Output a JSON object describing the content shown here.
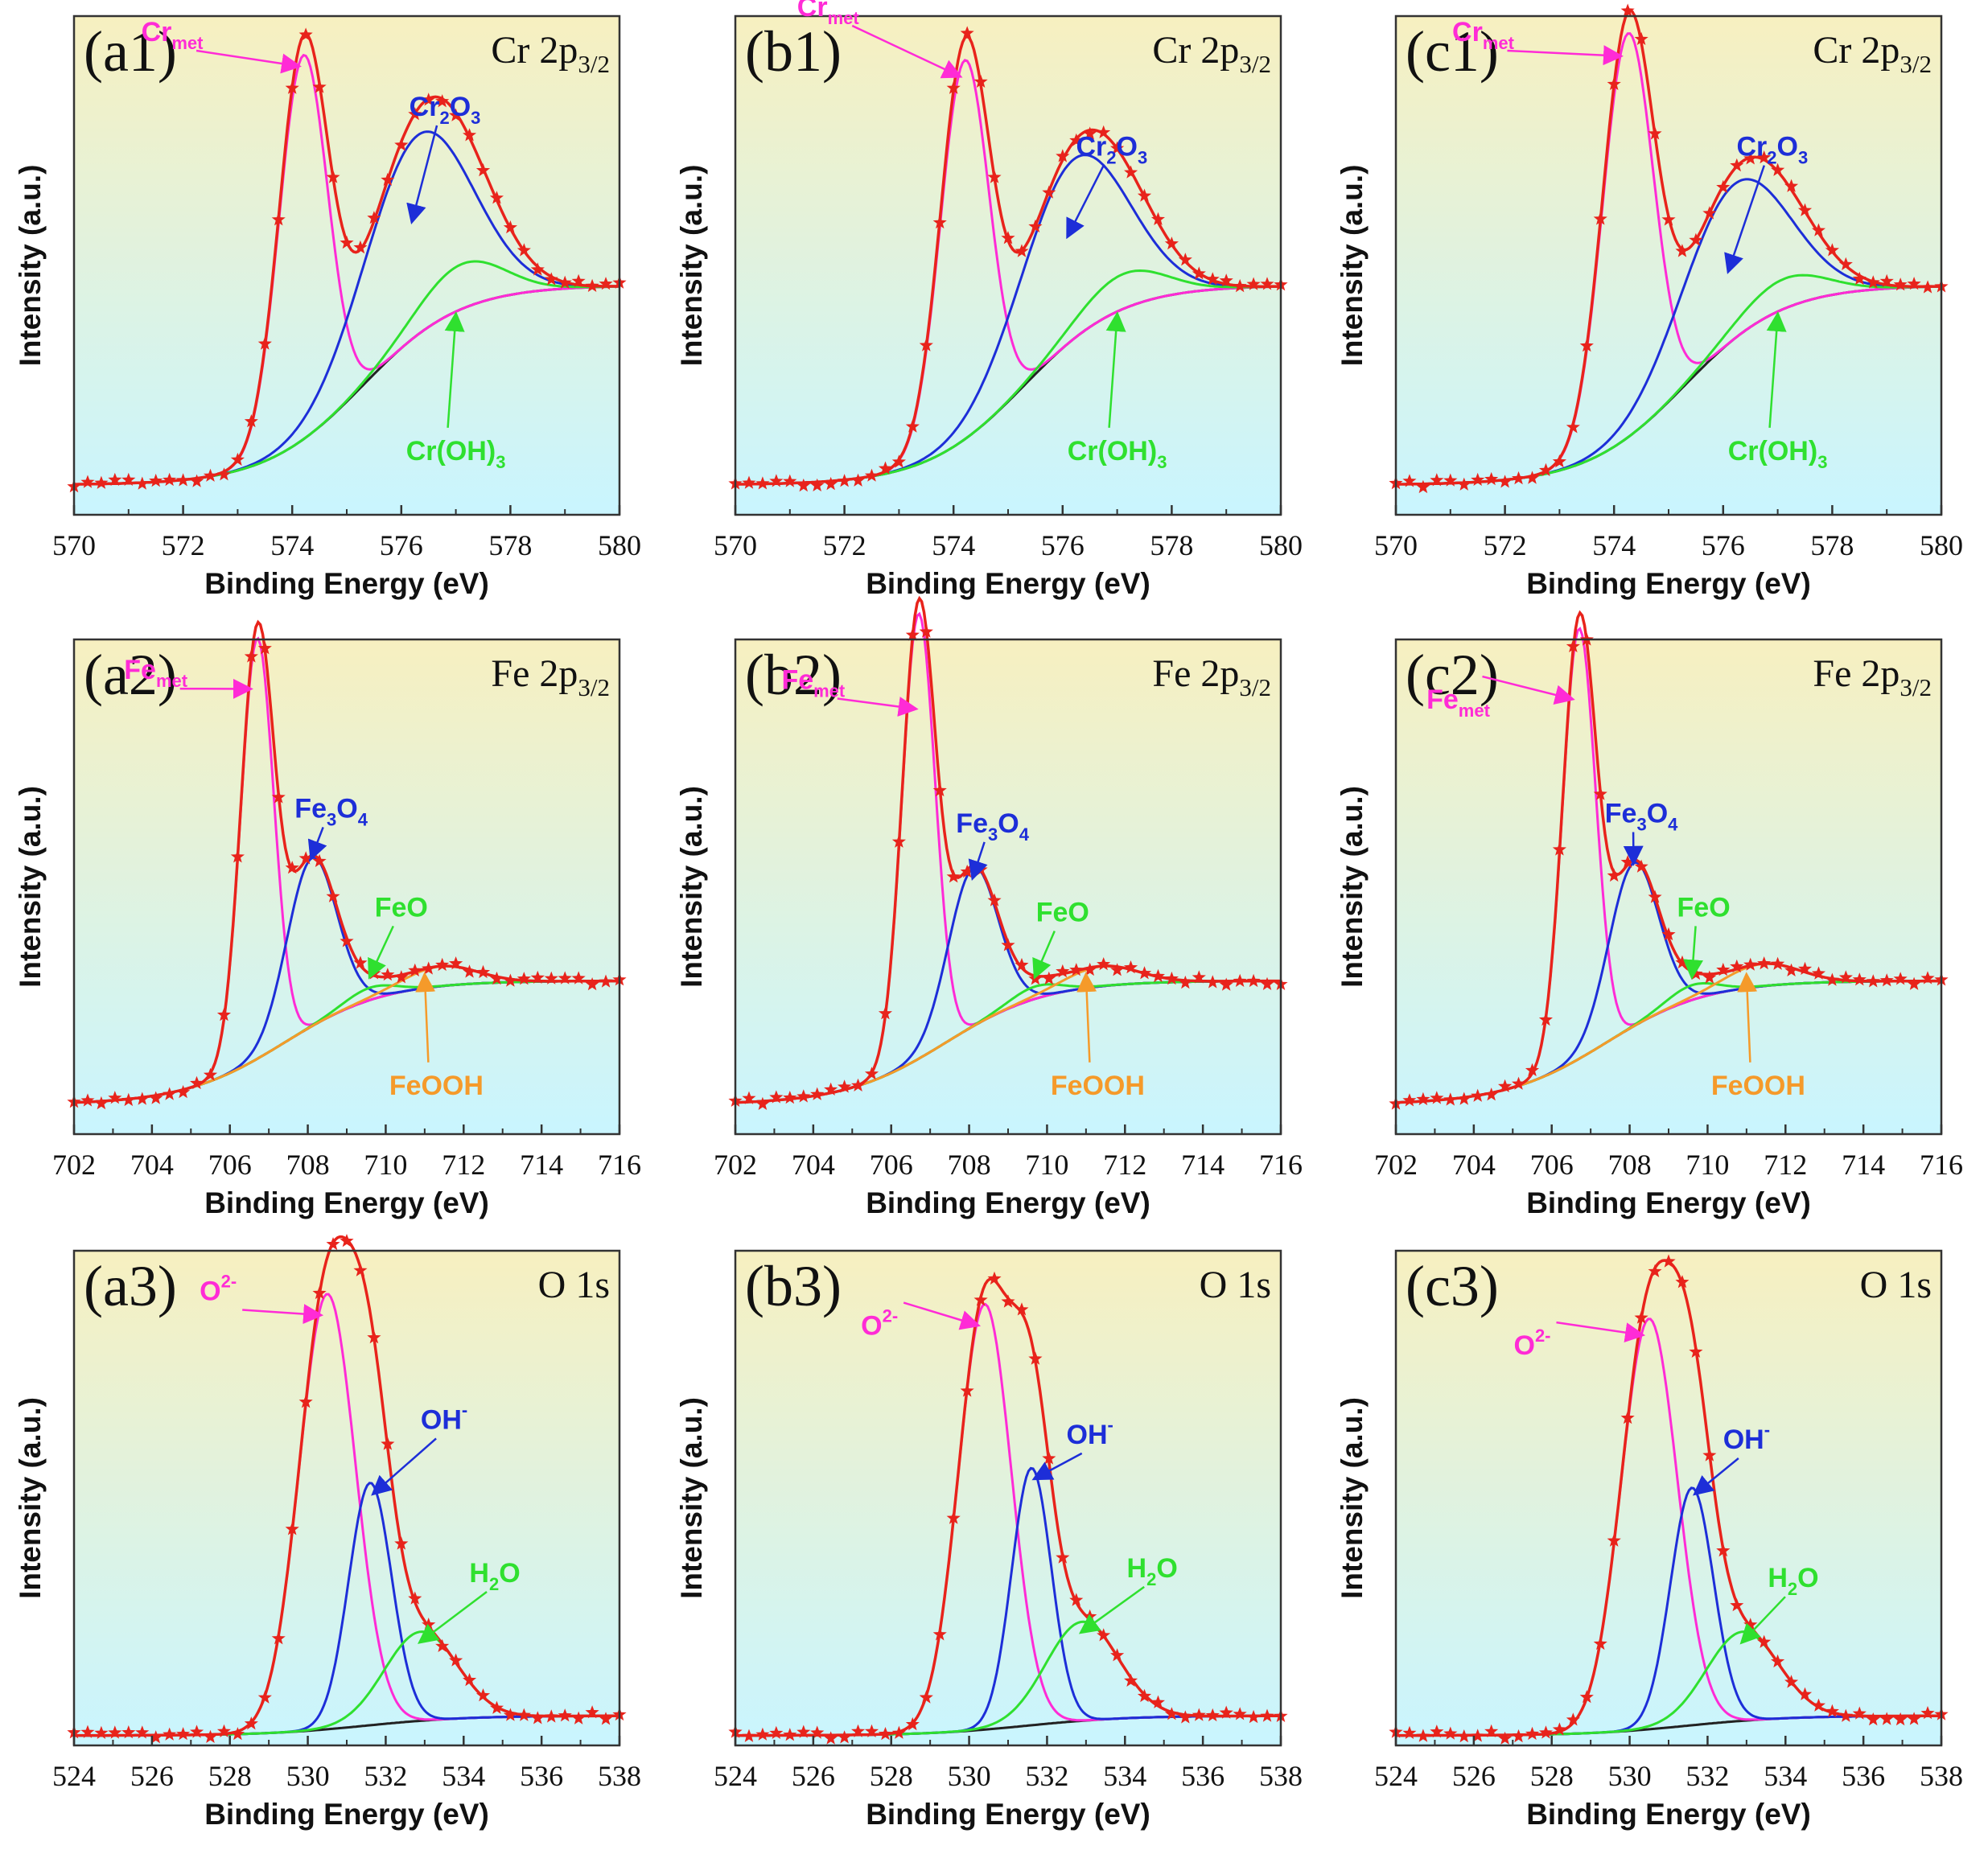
{
  "colors": {
    "data": "#e8231b",
    "envelope": "#e8231b",
    "metallic_or_o2": "#ff2bd6",
    "oxide_or_oh": "#1d2ed8",
    "hydroxide_or_h2o": "#2fe02f",
    "feooh": "#f59a2a",
    "background": "#222222",
    "bg_top": "#f7f0c0",
    "bg_bottom": "#c9f5ff"
  },
  "chart_data": [
    {
      "type": "line",
      "panel": "(a1)",
      "element": "Cr 2p",
      "element_sub": "3/2",
      "xlabel": "Binding Energy (eV)",
      "ylabel": "Intensity (a.u.)",
      "xlim": [
        570,
        580
      ],
      "xticks": [
        "570",
        "572",
        "574",
        "576",
        "578",
        "580"
      ],
      "baseline": {
        "center": 575.3,
        "width": 0.9,
        "base": 0.06,
        "height": 0.4
      },
      "components": [
        {
          "name": "Cr",
          "sub": "met",
          "role": "metallic_or_o2",
          "center": 574.2,
          "fwhm": 1.05,
          "height": 0.77
        },
        {
          "name": "Cr",
          "sub": "2",
          "name2": "O",
          "sub2": "3",
          "role": "oxide_or_oh",
          "center": 576.3,
          "fwhm": 2.3,
          "height": 0.4
        },
        {
          "name": "Cr(OH)",
          "sub": "3",
          "role": "hydroxide_or_h2o",
          "center": 577.1,
          "fwhm": 1.8,
          "height": 0.09
        }
      ],
      "annotations": [
        {
          "component": 0,
          "text_x": 571.8,
          "text_y": 0.95,
          "target_x": 574.1,
          "target_y": 0.9
        },
        {
          "component": 1,
          "text_x": 576.8,
          "text_y": 0.8,
          "target_x": 576.2,
          "target_y": 0.59
        },
        {
          "component": 2,
          "text_x": 577.0,
          "text_y": 0.11,
          "target_x": 577.0,
          "target_y": 0.4
        }
      ]
    },
    {
      "type": "line",
      "panel": "(b1)",
      "element": "Cr 2p",
      "element_sub": "3/2",
      "xlabel": "Binding Energy (eV)",
      "ylabel": "Intensity (a.u.)",
      "xlim": [
        570,
        580
      ],
      "xticks": [
        "570",
        "572",
        "574",
        "576",
        "578",
        "580"
      ],
      "baseline": {
        "center": 575.3,
        "width": 0.9,
        "base": 0.06,
        "height": 0.4
      },
      "components": [
        {
          "name": "Cr",
          "sub": "met",
          "role": "metallic_or_o2",
          "center": 574.2,
          "fwhm": 1.05,
          "height": 0.76
        },
        {
          "name": "Cr",
          "sub": "2",
          "name2": "O",
          "sub2": "3",
          "role": "oxide_or_oh",
          "center": 576.2,
          "fwhm": 2.3,
          "height": 0.36
        },
        {
          "name": "Cr(OH)",
          "sub": "3",
          "role": "hydroxide_or_h2o",
          "center": 577.1,
          "fwhm": 1.8,
          "height": 0.07
        }
      ],
      "annotations": [
        {
          "component": 0,
          "text_x": 571.7,
          "text_y": 1.0,
          "target_x": 574.1,
          "target_y": 0.88
        },
        {
          "component": 1,
          "text_x": 576.9,
          "text_y": 0.72,
          "target_x": 576.1,
          "target_y": 0.56
        },
        {
          "component": 2,
          "text_x": 577.0,
          "text_y": 0.11,
          "target_x": 577.0,
          "target_y": 0.4
        }
      ]
    },
    {
      "type": "line",
      "panel": "(c1)",
      "element": "Cr 2p",
      "element_sub": "3/2",
      "xlabel": "Binding Energy (eV)",
      "ylabel": "Intensity (a.u.)",
      "xlim": [
        570,
        580
      ],
      "xticks": [
        "570",
        "572",
        "574",
        "576",
        "578",
        "580"
      ],
      "baseline": {
        "center": 575.3,
        "width": 0.9,
        "base": 0.06,
        "height": 0.4
      },
      "components": [
        {
          "name": "Cr",
          "sub": "met",
          "role": "metallic_or_o2",
          "center": 574.25,
          "fwhm": 1.1,
          "height": 0.81
        },
        {
          "name": "Cr",
          "sub": "2",
          "name2": "O",
          "sub2": "3",
          "role": "oxide_or_oh",
          "center": 576.2,
          "fwhm": 2.3,
          "height": 0.31
        },
        {
          "name": "Cr(OH)",
          "sub": "3",
          "role": "hydroxide_or_h2o",
          "center": 577.1,
          "fwhm": 1.8,
          "height": 0.06
        }
      ],
      "annotations": [
        {
          "component": 0,
          "text_x": 571.6,
          "text_y": 0.95,
          "target_x": 574.1,
          "target_y": 0.92
        },
        {
          "component": 1,
          "text_x": 576.9,
          "text_y": 0.72,
          "target_x": 576.1,
          "target_y": 0.49
        },
        {
          "component": 2,
          "text_x": 577.0,
          "text_y": 0.11,
          "target_x": 577.0,
          "target_y": 0.4
        }
      ]
    },
    {
      "type": "line",
      "panel": "(a2)",
      "element": "Fe 2p",
      "element_sub": "3/2",
      "xlabel": "Binding Energy (eV)",
      "ylabel": "Intensity (a.u.)",
      "xlim": [
        702,
        716
      ],
      "xticks": [
        "702",
        "704",
        "706",
        "708",
        "710",
        "712",
        "714",
        "716"
      ],
      "baseline": {
        "center": 707.4,
        "width": 1.3,
        "base": 0.06,
        "height": 0.25
      },
      "components": [
        {
          "name": "Fe",
          "sub": "met",
          "role": "metallic_or_o2",
          "center": 706.7,
          "fwhm": 1.0,
          "height": 0.85
        },
        {
          "name": "Fe",
          "sub": "3",
          "name2": "O",
          "sub2": "4",
          "role": "oxide_or_oh",
          "center": 708.1,
          "fwhm": 1.5,
          "height": 0.34
        },
        {
          "name": "FeO",
          "role": "hydroxide_or_h2o",
          "center": 709.6,
          "fwhm": 1.5,
          "height": 0.025
        },
        {
          "name": "FeOOH",
          "role": "feooh",
          "center": 711.4,
          "fwhm": 2.2,
          "height": 0.04
        }
      ],
      "annotations": [
        {
          "component": 0,
          "text_x": 704.1,
          "text_y": 0.92,
          "target_x": 706.5,
          "target_y": 0.9
        },
        {
          "component": 1,
          "text_x": 708.6,
          "text_y": 0.64,
          "target_x": 708.1,
          "target_y": 0.56
        },
        {
          "component": 2,
          "text_x": 710.4,
          "text_y": 0.44,
          "target_x": 709.6,
          "target_y": 0.32
        },
        {
          "component": 3,
          "text_x": 711.3,
          "text_y": 0.08,
          "target_x": 711.0,
          "target_y": 0.32
        }
      ]
    },
    {
      "type": "line",
      "panel": "(b2)",
      "element": "Fe 2p",
      "element_sub": "3/2",
      "xlabel": "Binding Energy (eV)",
      "ylabel": "Intensity (a.u.)",
      "xlim": [
        702,
        716
      ],
      "xticks": [
        "702",
        "704",
        "706",
        "708",
        "710",
        "712",
        "714",
        "716"
      ],
      "baseline": {
        "center": 707.4,
        "width": 1.3,
        "base": 0.06,
        "height": 0.25
      },
      "components": [
        {
          "name": "Fe",
          "sub": "met",
          "role": "metallic_or_o2",
          "center": 706.7,
          "fwhm": 1.0,
          "height": 0.9
        },
        {
          "name": "Fe",
          "sub": "3",
          "name2": "O",
          "sub2": "4",
          "role": "oxide_or_oh",
          "center": 708.1,
          "fwhm": 1.5,
          "height": 0.32
        },
        {
          "name": "FeO",
          "role": "hydroxide_or_h2o",
          "center": 709.7,
          "fwhm": 1.5,
          "height": 0.025
        },
        {
          "name": "FeOOH",
          "role": "feooh",
          "center": 711.4,
          "fwhm": 2.2,
          "height": 0.04
        }
      ],
      "annotations": [
        {
          "component": 0,
          "text_x": 704.0,
          "text_y": 0.9,
          "target_x": 706.6,
          "target_y": 0.86
        },
        {
          "component": 1,
          "text_x": 708.6,
          "text_y": 0.61,
          "target_x": 708.1,
          "target_y": 0.52
        },
        {
          "component": 2,
          "text_x": 710.4,
          "text_y": 0.43,
          "target_x": 709.7,
          "target_y": 0.32
        },
        {
          "component": 3,
          "text_x": 711.3,
          "text_y": 0.08,
          "target_x": 711.0,
          "target_y": 0.32
        }
      ]
    },
    {
      "type": "line",
      "panel": "(c2)",
      "element": "Fe 2p",
      "element_sub": "3/2",
      "xlabel": "Binding Energy (eV)",
      "ylabel": "Intensity (a.u.)",
      "xlim": [
        702,
        716
      ],
      "xticks": [
        "702",
        "704",
        "706",
        "708",
        "710",
        "712",
        "714",
        "716"
      ],
      "baseline": {
        "center": 707.4,
        "width": 1.3,
        "base": 0.06,
        "height": 0.25
      },
      "components": [
        {
          "name": "Fe",
          "sub": "met",
          "role": "metallic_or_o2",
          "center": 706.7,
          "fwhm": 1.0,
          "height": 0.87
        },
        {
          "name": "Fe",
          "sub": "3",
          "name2": "O",
          "sub2": "4",
          "role": "oxide_or_oh",
          "center": 708.1,
          "fwhm": 1.5,
          "height": 0.33
        },
        {
          "name": "FeO",
          "role": "hydroxide_or_h2o",
          "center": 709.6,
          "fwhm": 1.5,
          "height": 0.03
        },
        {
          "name": "FeOOH",
          "role": "feooh",
          "center": 711.4,
          "fwhm": 2.2,
          "height": 0.045
        }
      ],
      "annotations": [
        {
          "component": 0,
          "text_x": 703.6,
          "text_y": 0.86,
          "target_x": 706.5,
          "target_y": 0.88
        },
        {
          "component": 1,
          "text_x": 708.3,
          "text_y": 0.63,
          "target_x": 708.1,
          "target_y": 0.55
        },
        {
          "component": 2,
          "text_x": 709.9,
          "text_y": 0.44,
          "target_x": 709.6,
          "target_y": 0.32
        },
        {
          "component": 3,
          "text_x": 711.3,
          "text_y": 0.08,
          "target_x": 711.0,
          "target_y": 0.32
        }
      ]
    },
    {
      "type": "line",
      "panel": "(a3)",
      "element": "O 1s",
      "element_sub": "",
      "xlabel": "Binding Energy (eV)",
      "ylabel": "Intensity (a.u.)",
      "xlim": [
        524,
        538
      ],
      "xticks": [
        "524",
        "526",
        "528",
        "530",
        "532",
        "534",
        "536",
        "538"
      ],
      "baseline": {
        "center": 531.5,
        "width": 1.3,
        "base": 0.02,
        "height": 0.04
      },
      "components": [
        {
          "name": "O",
          "sup": "2-",
          "role": "metallic_or_o2",
          "center": 530.5,
          "fwhm": 1.7,
          "height": 0.88
        },
        {
          "name": "OH",
          "sup": "-",
          "role": "oxide_or_oh",
          "center": 531.6,
          "fwhm": 1.3,
          "height": 0.49
        },
        {
          "name": "H",
          "sub": "2",
          "name2": "O",
          "role": "hydroxide_or_h2o",
          "center": 532.9,
          "fwhm": 2.2,
          "height": 0.18
        }
      ],
      "annotations": [
        {
          "component": 0,
          "text_x": 527.7,
          "text_y": 0.9,
          "target_x": 530.3,
          "target_y": 0.87
        },
        {
          "component": 1,
          "text_x": 533.5,
          "text_y": 0.64,
          "target_x": 531.7,
          "target_y": 0.51
        },
        {
          "component": 2,
          "text_x": 534.8,
          "text_y": 0.33,
          "target_x": 532.9,
          "target_y": 0.21
        }
      ]
    },
    {
      "type": "line",
      "panel": "(b3)",
      "element": "O 1s",
      "element_sub": "",
      "xlabel": "Binding Energy (eV)",
      "ylabel": "Intensity (a.u.)",
      "xlim": [
        524,
        538
      ],
      "xticks": [
        "524",
        "526",
        "528",
        "530",
        "532",
        "534",
        "536",
        "538"
      ],
      "baseline": {
        "center": 531.5,
        "width": 1.3,
        "base": 0.02,
        "height": 0.04
      },
      "components": [
        {
          "name": "O",
          "sup": "2-",
          "role": "metallic_or_o2",
          "center": 530.4,
          "fwhm": 1.6,
          "height": 0.86
        },
        {
          "name": "OH",
          "sup": "-",
          "role": "oxide_or_oh",
          "center": 531.6,
          "fwhm": 1.2,
          "height": 0.52
        },
        {
          "name": "H",
          "sub": "2",
          "name2": "O",
          "role": "hydroxide_or_h2o",
          "center": 532.9,
          "fwhm": 2.2,
          "height": 0.2
        }
      ],
      "annotations": [
        {
          "component": 0,
          "text_x": 527.7,
          "text_y": 0.83,
          "target_x": 530.2,
          "target_y": 0.85
        },
        {
          "component": 1,
          "text_x": 533.1,
          "text_y": 0.61,
          "target_x": 531.7,
          "target_y": 0.54
        },
        {
          "component": 2,
          "text_x": 534.7,
          "text_y": 0.34,
          "target_x": 532.9,
          "target_y": 0.23
        }
      ]
    },
    {
      "type": "line",
      "panel": "(c3)",
      "element": "O 1s",
      "element_sub": "",
      "xlabel": "Binding Energy (eV)",
      "ylabel": "Intensity (a.u.)",
      "xlim": [
        524,
        538
      ],
      "xticks": [
        "524",
        "526",
        "528",
        "530",
        "532",
        "534",
        "536",
        "538"
      ],
      "baseline": {
        "center": 531.5,
        "width": 1.3,
        "base": 0.02,
        "height": 0.04
      },
      "components": [
        {
          "name": "O",
          "sup": "2-",
          "role": "metallic_or_o2",
          "center": 530.5,
          "fwhm": 1.7,
          "height": 0.83
        },
        {
          "name": "OH",
          "sup": "-",
          "role": "oxide_or_oh",
          "center": 531.6,
          "fwhm": 1.3,
          "height": 0.48
        },
        {
          "name": "H",
          "sub": "2",
          "name2": "O",
          "role": "hydroxide_or_h2o",
          "center": 532.9,
          "fwhm": 2.2,
          "height": 0.18
        }
      ],
      "annotations": [
        {
          "component": 0,
          "text_x": 527.5,
          "text_y": 0.79,
          "target_x": 530.3,
          "target_y": 0.83
        },
        {
          "component": 1,
          "text_x": 533.0,
          "text_y": 0.6,
          "target_x": 531.7,
          "target_y": 0.51
        },
        {
          "component": 2,
          "text_x": 534.2,
          "text_y": 0.32,
          "target_x": 532.9,
          "target_y": 0.21
        }
      ]
    }
  ]
}
